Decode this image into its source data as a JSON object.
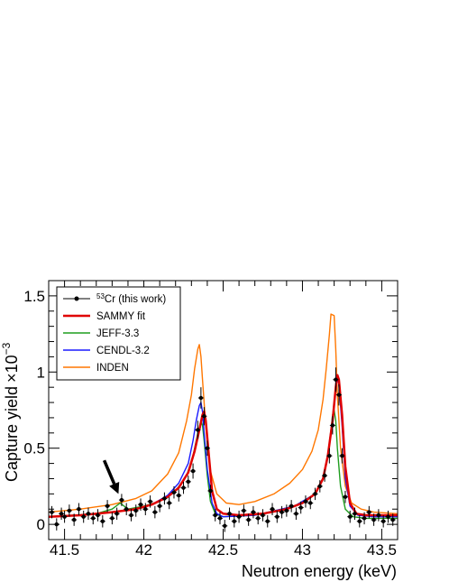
{
  "chart_data": {
    "type": "line",
    "xlabel": "Neutron energy (keV)",
    "ylabel": "Capture yield",
    "ylabel_scale": "×10",
    "ylabel_scale_exp": "−3",
    "xlim": [
      41.4,
      43.6
    ],
    "ylim": [
      -0.1,
      1.6
    ],
    "x_ticks": [
      41.5,
      42,
      42.5,
      43,
      43.5
    ],
    "x_tick_labels": [
      "41.5",
      "42",
      "42.5",
      "43",
      "43.5"
    ],
    "y_ticks": [
      0,
      0.5,
      1,
      1.5
    ],
    "y_tick_labels": [
      "0",
      "0.5",
      "1",
      "1.5"
    ],
    "grid": false,
    "legend_position": "top-left",
    "series_colors": {
      "data": "#000000",
      "sammy": "#e00000",
      "jeff": "#1f9d1f",
      "cendl": "#1a1aff",
      "inden": "#ff7700"
    },
    "series": [
      {
        "name": "53Cr (this work)",
        "style": "points",
        "color": "#000000",
        "x": [
          41.42,
          41.45,
          41.48,
          41.5,
          41.53,
          41.56,
          41.59,
          41.62,
          41.65,
          41.68,
          41.71,
          41.74,
          41.77,
          41.8,
          41.83,
          41.86,
          41.89,
          41.92,
          41.95,
          41.98,
          42.01,
          42.04,
          42.07,
          42.1,
          42.13,
          42.16,
          42.19,
          42.22,
          42.25,
          42.28,
          42.31,
          42.34,
          42.36,
          42.38,
          42.4,
          42.42,
          42.45,
          42.48,
          42.51,
          42.54,
          42.57,
          42.6,
          42.63,
          42.66,
          42.69,
          42.72,
          42.75,
          42.78,
          42.81,
          42.84,
          42.87,
          42.9,
          42.93,
          42.96,
          42.99,
          43.02,
          43.05,
          43.08,
          43.11,
          43.14,
          43.17,
          43.19,
          43.21,
          43.23,
          43.25,
          43.27,
          43.3,
          43.33,
          43.36,
          43.39,
          43.42,
          43.45,
          43.48,
          43.51,
          43.54,
          43.57
        ],
        "y": [
          0.08,
          0.0,
          0.07,
          0.05,
          0.09,
          0.03,
          0.1,
          0.05,
          0.07,
          0.04,
          0.06,
          0.02,
          0.12,
          0.04,
          0.07,
          0.16,
          0.1,
          0.06,
          0.09,
          0.13,
          0.1,
          0.15,
          0.08,
          0.12,
          0.17,
          0.14,
          0.21,
          0.19,
          0.24,
          0.28,
          0.35,
          0.62,
          0.83,
          0.71,
          0.5,
          0.22,
          0.06,
          0.04,
          -0.01,
          0.07,
          0.02,
          0.05,
          0.09,
          0.03,
          0.08,
          0.04,
          0.06,
          0.02,
          0.1,
          0.05,
          0.08,
          0.09,
          0.12,
          0.07,
          0.11,
          0.15,
          0.14,
          0.2,
          0.25,
          0.32,
          0.45,
          0.65,
          0.95,
          0.85,
          0.45,
          0.18,
          0.05,
          0.07,
          0.02,
          0.04,
          0.08,
          0.03,
          0.06,
          0.02,
          0.05,
          0.03
        ],
        "yerr": [
          0.04,
          0.04,
          0.04,
          0.04,
          0.04,
          0.04,
          0.04,
          0.04,
          0.04,
          0.04,
          0.04,
          0.04,
          0.04,
          0.04,
          0.04,
          0.04,
          0.04,
          0.04,
          0.04,
          0.04,
          0.04,
          0.04,
          0.04,
          0.04,
          0.04,
          0.04,
          0.04,
          0.04,
          0.04,
          0.04,
          0.05,
          0.06,
          0.07,
          0.06,
          0.05,
          0.04,
          0.04,
          0.04,
          0.04,
          0.04,
          0.04,
          0.04,
          0.04,
          0.04,
          0.04,
          0.04,
          0.04,
          0.04,
          0.04,
          0.04,
          0.04,
          0.04,
          0.04,
          0.04,
          0.04,
          0.04,
          0.04,
          0.04,
          0.04,
          0.04,
          0.05,
          0.06,
          0.08,
          0.07,
          0.05,
          0.04,
          0.04,
          0.04,
          0.04,
          0.04,
          0.04,
          0.04,
          0.04,
          0.04,
          0.04,
          0.04
        ]
      },
      {
        "name": "SAMMY fit",
        "style": "line",
        "color": "#e00000",
        "x": [
          41.4,
          41.6,
          41.8,
          41.95,
          42.05,
          42.15,
          42.22,
          42.28,
          42.32,
          42.35,
          42.37,
          42.38,
          42.39,
          42.41,
          42.43,
          42.46,
          42.5,
          42.6,
          42.75,
          42.9,
          43.0,
          43.08,
          43.13,
          43.16,
          43.19,
          43.21,
          43.22,
          43.23,
          43.25,
          43.27,
          43.3,
          43.34,
          43.4,
          43.6
        ],
        "y": [
          0.05,
          0.06,
          0.08,
          0.1,
          0.13,
          0.18,
          0.24,
          0.34,
          0.48,
          0.62,
          0.72,
          0.74,
          0.68,
          0.45,
          0.22,
          0.1,
          0.07,
          0.06,
          0.07,
          0.1,
          0.14,
          0.2,
          0.3,
          0.45,
          0.68,
          0.9,
          0.98,
          0.95,
          0.72,
          0.38,
          0.14,
          0.07,
          0.06,
          0.06
        ]
      },
      {
        "name": "JEFF-3.3",
        "style": "line",
        "color": "#1f9d1f",
        "x": [
          41.4,
          41.7,
          41.8,
          41.85,
          41.9,
          42.0,
          42.1,
          42.2,
          42.27,
          42.31,
          42.34,
          42.36,
          42.37,
          42.38,
          42.4,
          42.42,
          42.45,
          42.5,
          42.7,
          42.95,
          43.08,
          43.13,
          43.16,
          43.18,
          43.19,
          43.2,
          43.21,
          43.22,
          43.24,
          43.27,
          43.32,
          43.4,
          43.6
        ],
        "y": [
          0.05,
          0.07,
          0.1,
          0.14,
          0.1,
          0.12,
          0.15,
          0.22,
          0.32,
          0.45,
          0.6,
          0.68,
          0.65,
          0.55,
          0.32,
          0.15,
          0.07,
          0.05,
          0.06,
          0.12,
          0.2,
          0.3,
          0.45,
          0.62,
          0.72,
          0.75,
          0.68,
          0.5,
          0.25,
          0.1,
          0.05,
          0.04,
          0.04
        ]
      },
      {
        "name": "CENDL-3.2",
        "style": "line",
        "color": "#1a1aff",
        "x": [
          41.4,
          41.6,
          41.8,
          41.95,
          42.05,
          42.15,
          42.22,
          42.28,
          42.31,
          42.33,
          42.35,
          42.36,
          42.37,
          42.38,
          42.4,
          42.43,
          42.46,
          42.5,
          42.7,
          42.95,
          43.08,
          43.13,
          43.16,
          43.19,
          43.21,
          43.22,
          43.23,
          43.25,
          43.27,
          43.3,
          43.35,
          43.45,
          43.6
        ],
        "y": [
          0.05,
          0.06,
          0.08,
          0.1,
          0.13,
          0.19,
          0.27,
          0.4,
          0.55,
          0.68,
          0.78,
          0.8,
          0.74,
          0.6,
          0.36,
          0.14,
          0.07,
          0.05,
          0.06,
          0.12,
          0.2,
          0.3,
          0.45,
          0.7,
          0.9,
          0.96,
          0.92,
          0.65,
          0.3,
          0.12,
          0.06,
          0.05,
          0.05
        ]
      },
      {
        "name": "INDEN",
        "style": "line",
        "color": "#ff7700",
        "x": [
          41.4,
          41.6,
          41.8,
          41.95,
          42.05,
          42.15,
          42.22,
          42.27,
          42.3,
          42.32,
          42.34,
          42.35,
          42.36,
          42.37,
          42.39,
          42.42,
          42.46,
          42.52,
          42.6,
          42.7,
          42.82,
          42.92,
          43.0,
          43.06,
          43.1,
          43.13,
          43.15,
          43.17,
          43.18,
          43.2,
          43.21,
          43.22,
          43.24,
          43.27,
          43.31,
          43.37,
          43.45,
          43.6
        ],
        "y": [
          0.08,
          0.1,
          0.13,
          0.17,
          0.22,
          0.33,
          0.47,
          0.68,
          0.85,
          1.02,
          1.15,
          1.18,
          1.1,
          0.95,
          0.65,
          0.35,
          0.2,
          0.14,
          0.13,
          0.15,
          0.2,
          0.27,
          0.36,
          0.48,
          0.62,
          0.82,
          1.02,
          1.25,
          1.38,
          1.37,
          1.15,
          0.85,
          0.5,
          0.25,
          0.14,
          0.1,
          0.08,
          0.07
        ]
      }
    ],
    "annotations": [
      {
        "type": "arrow",
        "from": [
          41.75,
          0.42
        ],
        "to": [
          41.84,
          0.2
        ]
      }
    ]
  }
}
